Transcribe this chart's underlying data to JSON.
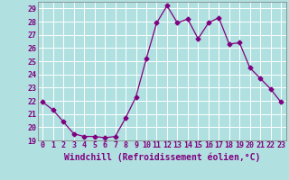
{
  "x": [
    0,
    1,
    2,
    3,
    4,
    5,
    6,
    7,
    8,
    9,
    10,
    11,
    12,
    13,
    14,
    15,
    16,
    17,
    18,
    19,
    20,
    21,
    22,
    23
  ],
  "y": [
    21.9,
    21.3,
    20.4,
    19.5,
    19.3,
    19.3,
    19.2,
    19.3,
    20.7,
    22.3,
    25.2,
    27.9,
    29.2,
    27.9,
    28.2,
    26.7,
    27.9,
    28.3,
    26.3,
    26.4,
    24.5,
    23.7,
    22.9,
    21.9
  ],
  "line_color": "#800080",
  "marker": "D",
  "marker_size": 2.5,
  "bg_color": "#b0e0e0",
  "grid_color": "#d0eeee",
  "xlabel": "Windchill (Refroidissement éolien,°C)",
  "ylabel_ticks": [
    19,
    20,
    21,
    22,
    23,
    24,
    25,
    26,
    27,
    28,
    29
  ],
  "xlim": [
    -0.5,
    23.5
  ],
  "ylim": [
    19,
    29.5
  ],
  "tick_color": "#800080",
  "label_color": "#800080",
  "tick_fontsize": 6,
  "xlabel_fontsize": 7
}
